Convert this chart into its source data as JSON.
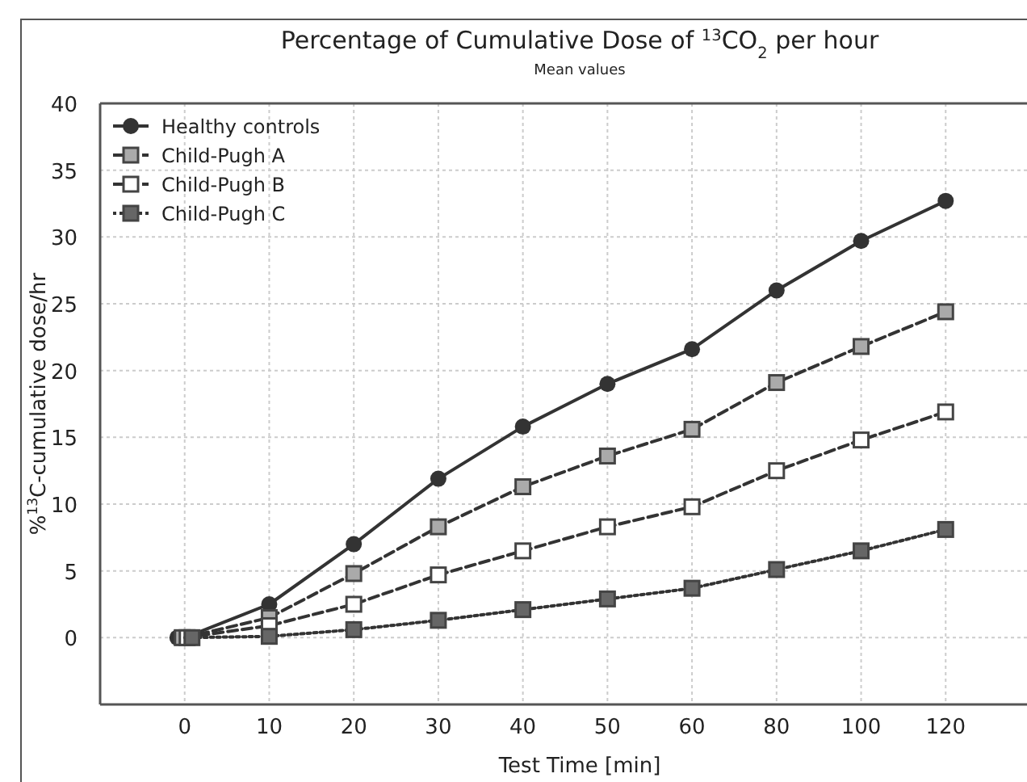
{
  "chart_data": {
    "type": "line",
    "title": "Percentage of Cumulative Dose of $^{13}$CO$_{2}$ per hour",
    "subtitle": "Mean values",
    "xlabel": "Test Time [min]",
    "ylabel": "%$^{13}$C-cumulative dose/hr",
    "categories": [
      "0",
      "10",
      "20",
      "30",
      "40",
      "50",
      "60",
      "80",
      "100",
      "120"
    ],
    "series": [
      {
        "name": "Healthy controls",
        "color": "#333333",
        "marker": "circle",
        "line_style": "solid",
        "values": [
          0,
          2.5,
          7.0,
          11.9,
          15.8,
          19.0,
          21.6,
          26.0,
          29.7,
          32.7
        ]
      },
      {
        "name": "Child-Pugh A",
        "color": "#aaaaaa",
        "marker": "square",
        "line_style": "dashed",
        "values": [
          0,
          1.5,
          4.8,
          8.3,
          11.3,
          13.6,
          15.6,
          19.1,
          21.8,
          24.4
        ]
      },
      {
        "name": "Child-Pugh B",
        "color": "#ffffff",
        "marker": "square",
        "line_style": "dashed",
        "values": [
          0,
          0.9,
          2.5,
          4.7,
          6.5,
          8.3,
          9.8,
          12.5,
          14.8,
          16.9
        ]
      },
      {
        "name": "Child-Pugh C",
        "color": "#666666",
        "marker": "square",
        "line_style": "dotted",
        "values": [
          0,
          0.1,
          0.6,
          1.3,
          2.1,
          2.9,
          3.7,
          5.1,
          6.5,
          8.1
        ]
      }
    ],
    "ylim": [
      -5,
      40
    ],
    "yticks": [
      {
        "value": -5,
        "label": null
      },
      0,
      5,
      10,
      15,
      20,
      25,
      30,
      35,
      40
    ],
    "grid": true,
    "legend": "top left"
  }
}
